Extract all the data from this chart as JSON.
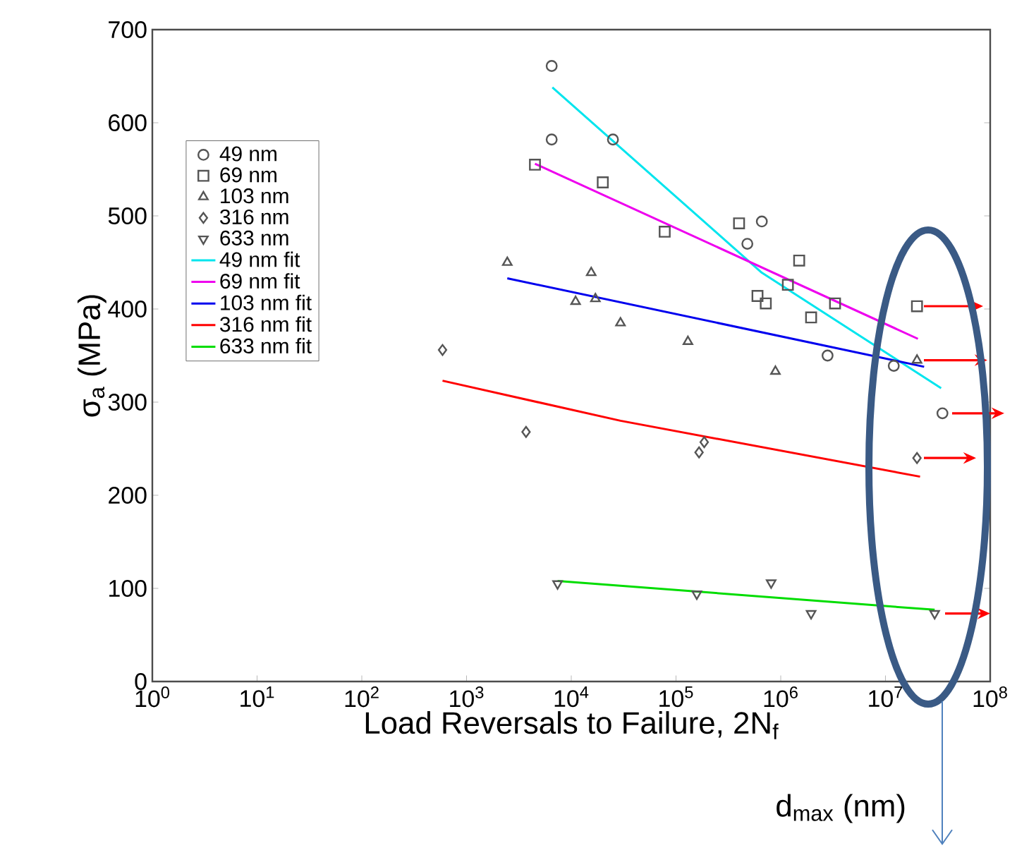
{
  "chart_data": {
    "type": "scatter",
    "xlabel": "Load Reversals to Failure, 2N$_{f}$",
    "ylabel": "σ$_{a}$ (MPa)",
    "log": "x",
    "xlim": [
      1,
      100000000
    ],
    "ylim": [
      0,
      700
    ],
    "xticks": [
      {
        "value": 1,
        "label": "10$^{0}$"
      },
      {
        "value": 10,
        "label": "10$^{1}$"
      },
      {
        "value": 100,
        "label": "10$^{2}$"
      },
      {
        "value": 1000,
        "label": "10$^{3}$"
      },
      {
        "value": 10000,
        "label": "10$^{4}$"
      },
      {
        "value": 100000,
        "label": "10$^{5}$"
      },
      {
        "value": 1000000,
        "label": "10$^{6}$"
      },
      {
        "value": 10000000,
        "label": "10$^{7}$"
      },
      {
        "value": 100000000,
        "label": "10$^{8}$"
      }
    ],
    "yticks": [
      0,
      100,
      200,
      300,
      400,
      500,
      600,
      700
    ],
    "legend": "top left",
    "annotations": [
      "d$_{max}$ (nm)"
    ],
    "series": [
      {
        "name": "49 nm",
        "type": "scatter",
        "marker": "circle",
        "color": "#555555",
        "x": [
          6500,
          6500,
          25000,
          480000,
          660000,
          2800000,
          12000000,
          35000000
        ],
        "values": [
          661,
          582,
          582,
          470,
          494,
          350,
          339,
          288
        ]
      },
      {
        "name": "69 nm",
        "type": "scatter",
        "marker": "square",
        "color": "#555555",
        "x": [
          4500,
          20000,
          78000,
          400000,
          600000,
          720000,
          1170000,
          1500000,
          1950000,
          3300000,
          20000000
        ],
        "values": [
          555,
          536,
          483,
          492,
          414,
          406,
          426,
          452,
          391,
          406,
          403
        ]
      },
      {
        "name": "103 nm",
        "type": "scatter",
        "marker": "triangle",
        "color": "#555555",
        "x": [
          2450,
          11000,
          15500,
          17000,
          29500,
          130000,
          890000,
          20000000
        ],
        "values": [
          450,
          408,
          439,
          411,
          385,
          365,
          333,
          345
        ]
      },
      {
        "name": "316 nm",
        "type": "scatter",
        "marker": "diamond",
        "color": "#555555",
        "x": [
          590,
          3700,
          166000,
          186000,
          20000000
        ],
        "values": [
          356,
          268,
          246,
          257,
          240
        ]
      },
      {
        "name": "633 nm",
        "type": "scatter",
        "marker": "triangle down",
        "color": "#555555",
        "x": [
          7400,
          158000,
          810000,
          1950000,
          29500000
        ],
        "values": [
          105,
          94,
          106,
          73,
          73
        ]
      },
      {
        "name": "49 nm fit",
        "type": "line",
        "color": "#00e5ee",
        "x": [
          6600,
          660000,
          34000000
        ],
        "values": [
          638,
          439,
          315
        ]
      },
      {
        "name": "69 nm fit",
        "type": "line",
        "color": "#ee00ee",
        "x": [
          4500,
          20400000
        ],
        "values": [
          556,
          368
        ]
      },
      {
        "name": "103 nm fit",
        "type": "line",
        "color": "#0000ee",
        "x": [
          2450,
          23400000
        ],
        "values": [
          433,
          338
        ]
      },
      {
        "name": "316 nm fit",
        "type": "line",
        "color": "#ff0000",
        "x": [
          590,
          29500,
          21400000
        ],
        "values": [
          323,
          280,
          220
        ]
      },
      {
        "name": "633 nm fit",
        "type": "line",
        "color": "#00dd00",
        "x": [
          7400,
          29500000
        ],
        "values": [
          108,
          77
        ]
      }
    ]
  }
}
